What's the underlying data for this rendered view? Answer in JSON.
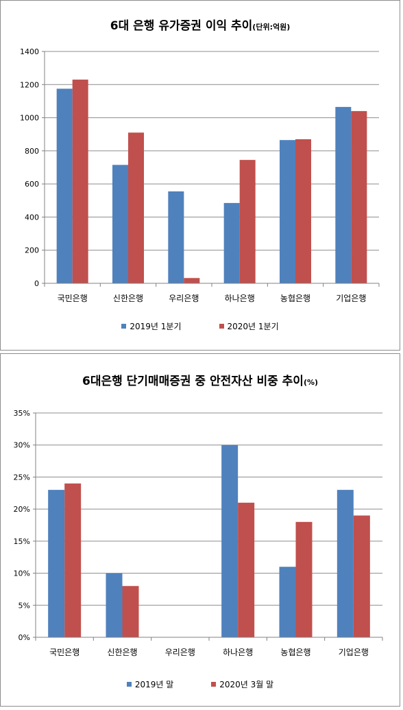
{
  "colors": {
    "series1": "#4f81bd",
    "series2": "#c0504d",
    "grid": "#8c8c8c",
    "axis": "#808080"
  },
  "chart_data": [
    {
      "type": "bar",
      "title": "6대 은행 유가증권 이익 추이",
      "subtitle": "(단위:억원)",
      "categories": [
        "국민은행",
        "신한은행",
        "우리은행",
        "하나은행",
        "농협은행",
        "기업은행"
      ],
      "series": [
        {
          "name": "2019년 1분기",
          "values": [
            1175,
            715,
            555,
            485,
            865,
            1065
          ]
        },
        {
          "name": "2020년 1분기",
          "values": [
            1230,
            910,
            32,
            745,
            870,
            1040
          ]
        }
      ],
      "ylim": [
        0,
        1400
      ],
      "yticks": [
        0,
        200,
        400,
        600,
        800,
        1000,
        1200,
        1400
      ],
      "ytick_labels": [
        "0",
        "200",
        "400",
        "600",
        "800",
        "1000",
        "1200",
        "1400"
      ],
      "grid": true,
      "legend_position": "bottom"
    },
    {
      "type": "bar",
      "title": "6대은행 단기매매증권 중 안전자산 비중 추이",
      "subtitle": "(%)",
      "categories": [
        "국민은행",
        "신한은행",
        "우리은행",
        "하나은행",
        "농협은행",
        "기업은행"
      ],
      "series": [
        {
          "name": "2019년 말",
          "values": [
            23,
            10,
            0,
            30,
            11,
            23
          ]
        },
        {
          "name": "2020년 3월 말",
          "values": [
            24,
            8,
            0,
            21,
            18,
            19
          ]
        }
      ],
      "ylim": [
        0,
        35
      ],
      "yticks": [
        0,
        5,
        10,
        15,
        20,
        25,
        30,
        35
      ],
      "ytick_labels": [
        "0%",
        "5%",
        "10%",
        "15%",
        "20%",
        "25%",
        "30%",
        "35%"
      ],
      "grid": true,
      "legend_position": "bottom"
    }
  ]
}
